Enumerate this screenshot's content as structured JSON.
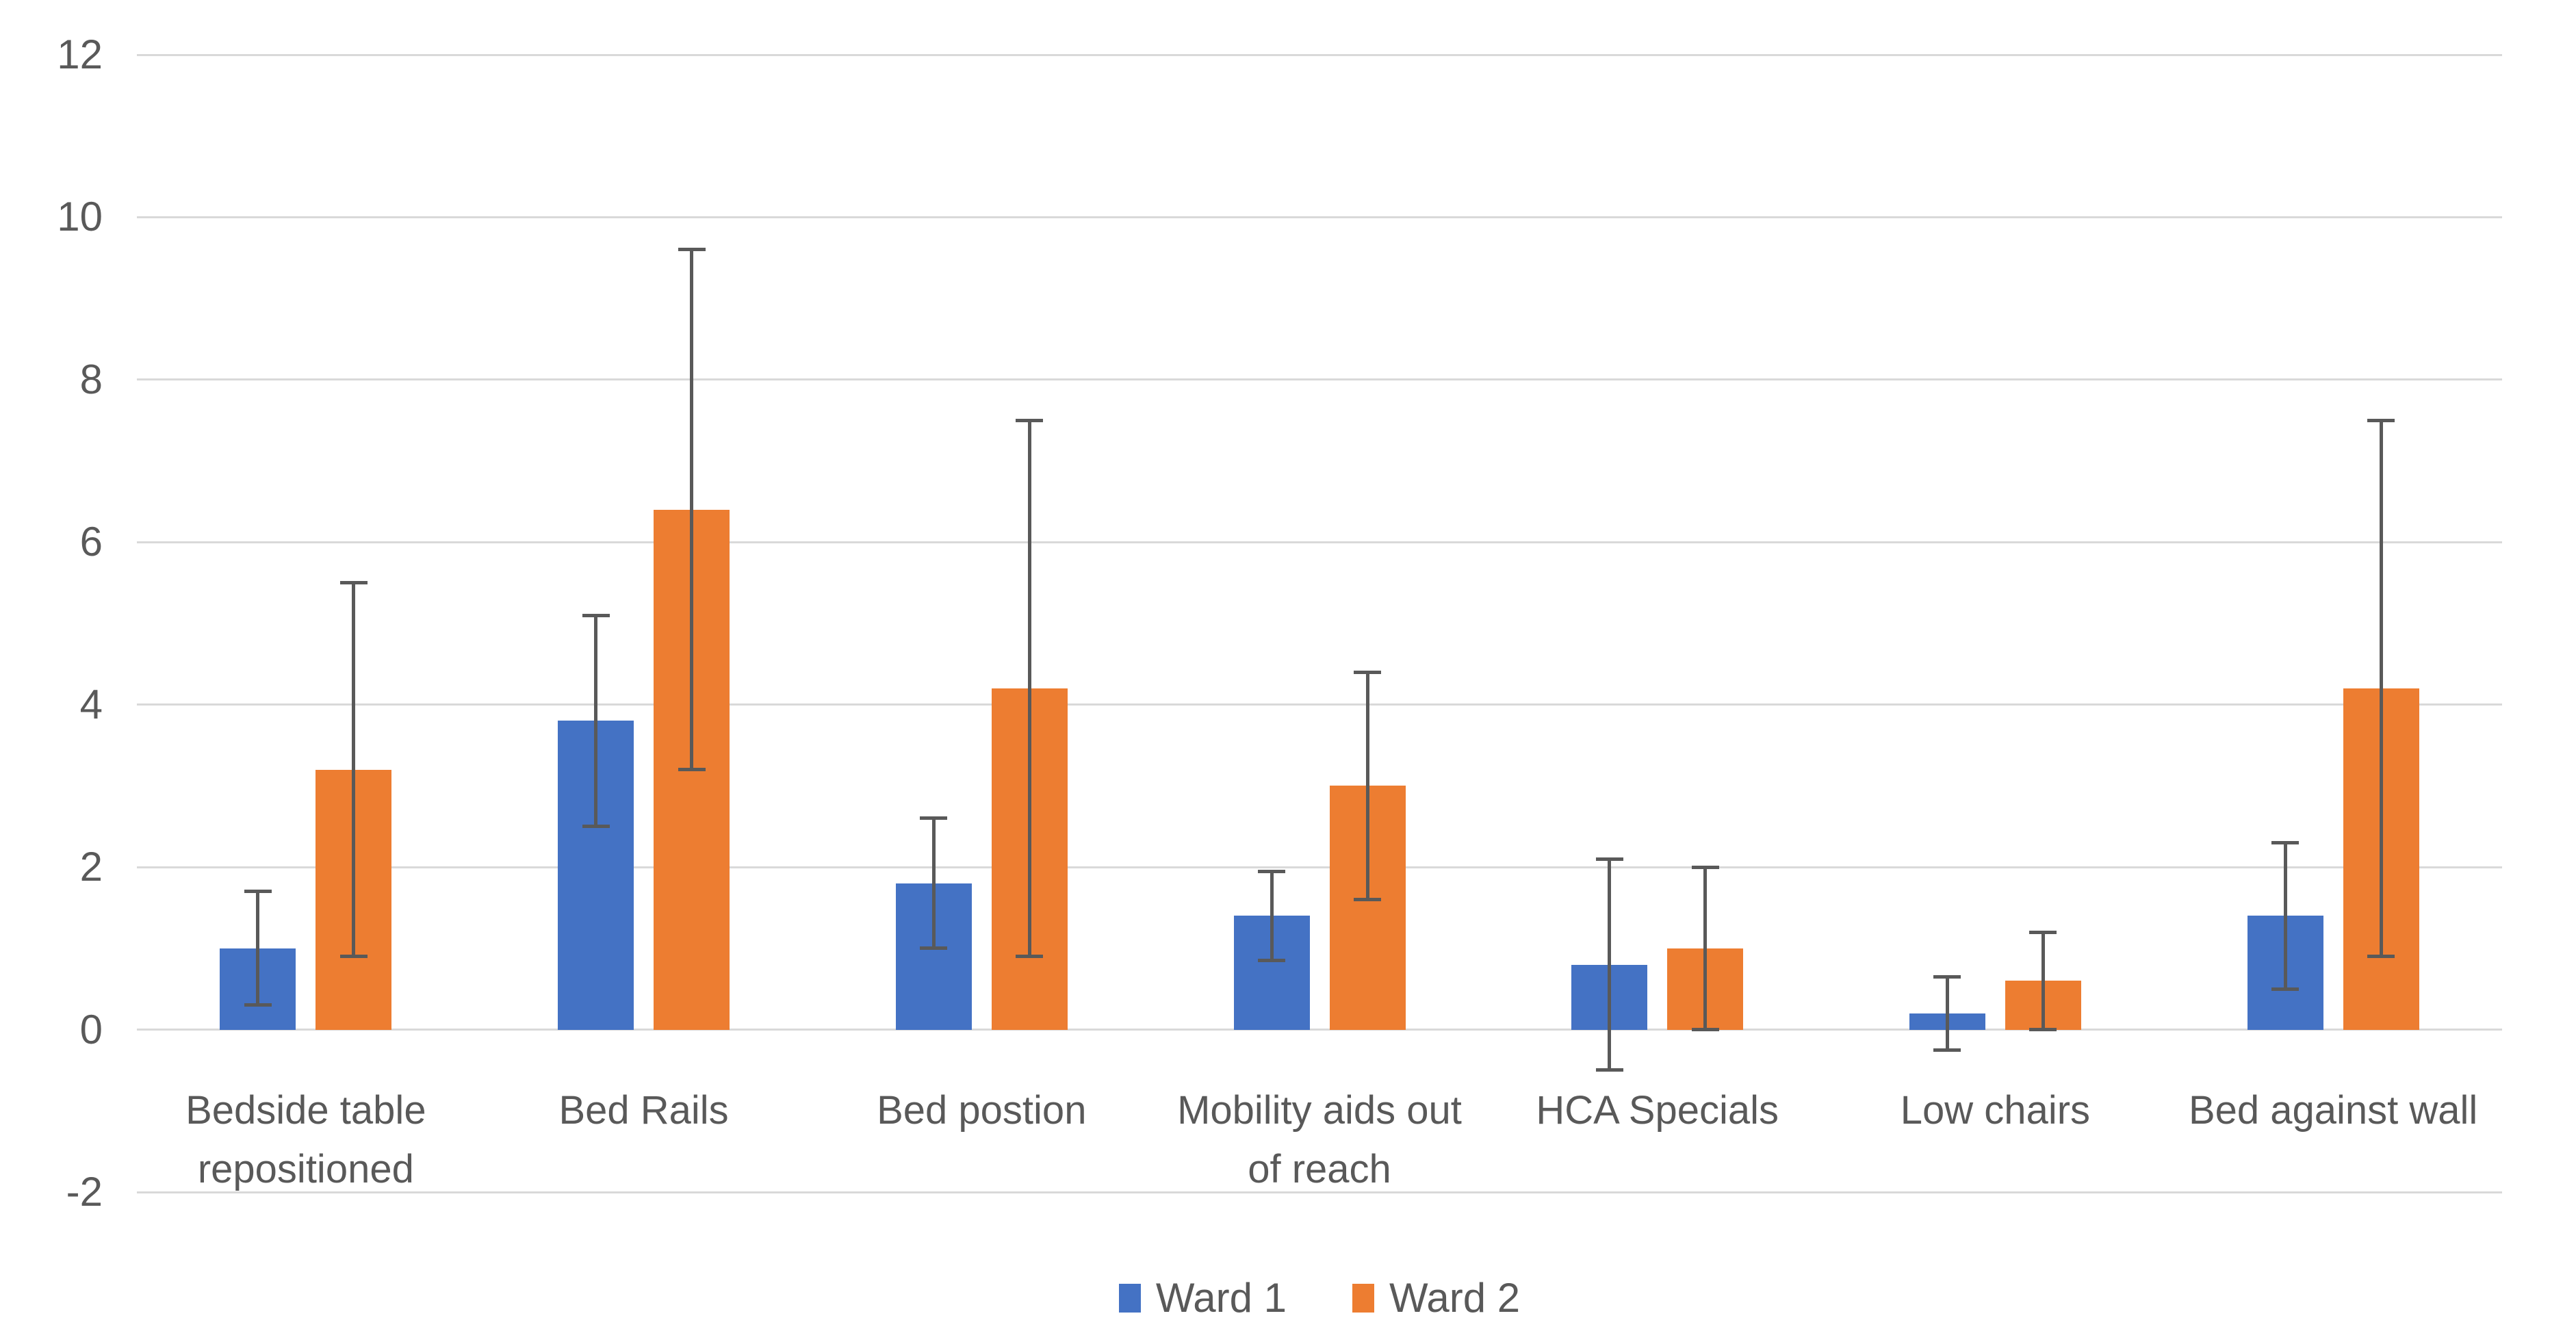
{
  "chart_data": {
    "type": "bar",
    "title": "",
    "categories": [
      "Bedside table\nrepositioned",
      "Bed Rails",
      "Bed postion",
      "Mobility aids out\nof reach",
      "HCA Specials",
      "Low chairs",
      "Bed against wall"
    ],
    "series": [
      {
        "name": "Ward 1",
        "color": "#4472C4",
        "values": [
          1.0,
          3.8,
          1.8,
          1.4,
          0.8,
          0.2,
          1.4
        ],
        "error_low": [
          0.3,
          2.5,
          1.0,
          0.85,
          -0.5,
          -0.25,
          0.5
        ],
        "error_high": [
          1.7,
          5.1,
          2.6,
          1.95,
          2.1,
          0.65,
          2.3
        ]
      },
      {
        "name": "Ward 2",
        "color": "#ED7D31",
        "values": [
          3.2,
          6.4,
          4.2,
          3.0,
          1.0,
          0.6,
          4.2
        ],
        "error_low": [
          0.9,
          3.2,
          0.9,
          1.6,
          0.0,
          0.0,
          0.9
        ],
        "error_high": [
          5.5,
          9.6,
          7.5,
          4.4,
          2.0,
          1.2,
          7.5
        ]
      }
    ],
    "y_axis": {
      "min": -2,
      "max": 12,
      "step": 2,
      "ticks": [
        12,
        10,
        8,
        6,
        4,
        2,
        0,
        -2
      ]
    },
    "grid": true,
    "legend_position": "bottom",
    "colors": {
      "gridline": "#D9D9D9",
      "text": "#595959",
      "error_bar": "#595959",
      "background": "#FFFFFF"
    }
  }
}
